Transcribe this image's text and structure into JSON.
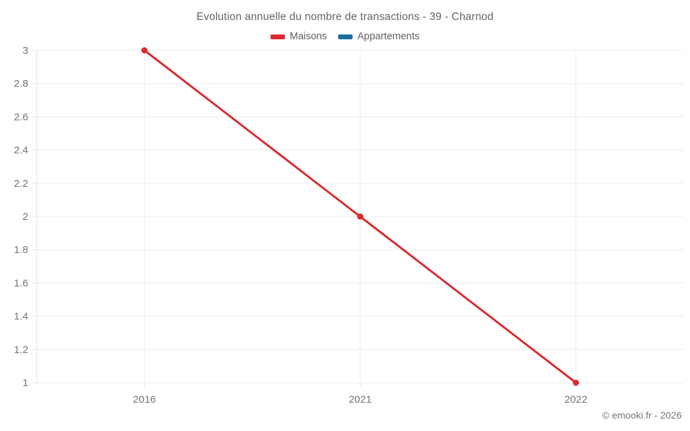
{
  "header": {
    "title": "Evolution annuelle du nombre de transactions - 39 - Charnod"
  },
  "legend": {
    "items": [
      {
        "label": "Maisons",
        "color": "#dc2a30"
      },
      {
        "label": "Appartements",
        "color": "#1a6f9e"
      }
    ]
  },
  "footer": {
    "copyright": "© emooki.fr - 2026"
  },
  "colors": {
    "grid": "#ececec",
    "axis": "#e0e0e0",
    "tick_label": "#757575",
    "title_text": "#5f6368"
  },
  "chart_data": {
    "type": "line",
    "categories": [
      "2016",
      "2021",
      "2022"
    ],
    "series": [
      {
        "name": "Maisons",
        "values": [
          3,
          2,
          1
        ],
        "color": "#dc2a30"
      },
      {
        "name": "Appartements",
        "values": [],
        "color": "#1a6f9e"
      }
    ],
    "title": "Evolution annuelle du nombre de transactions - 39 - Charnod",
    "xlabel": "",
    "ylabel": "",
    "ylim": [
      1,
      3
    ],
    "ytick_step": 0.2,
    "ytick_labels": [
      "1",
      "1.2",
      "1.4",
      "1.6",
      "1.8",
      "2",
      "2.2",
      "2.4",
      "2.6",
      "2.8",
      "3"
    ],
    "grid": true,
    "legend_position": "top",
    "point_radius": 4.5,
    "line_width": 3
  }
}
